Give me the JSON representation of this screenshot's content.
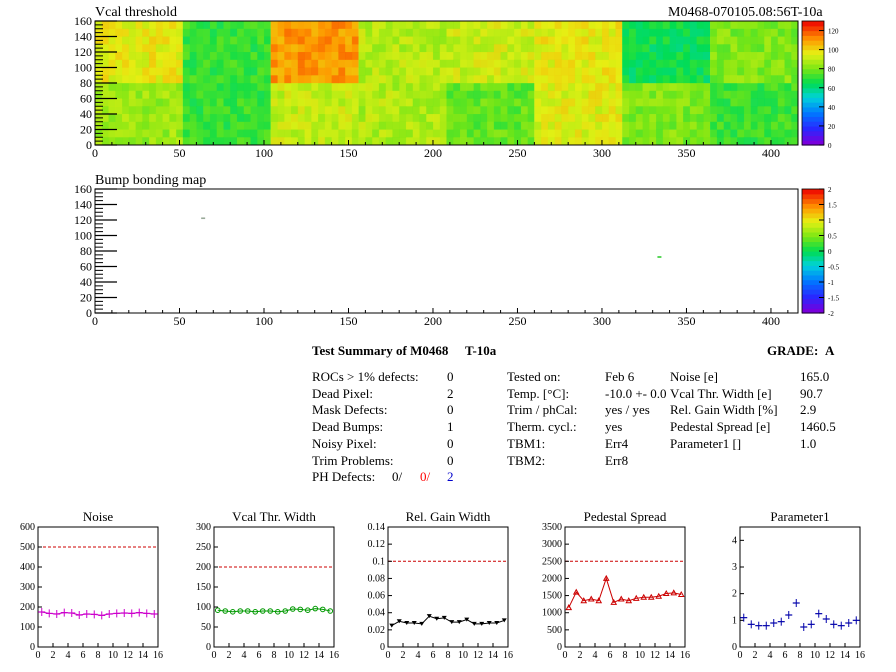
{
  "header": {
    "module_id": "M0468-070105.08:56T-10a"
  },
  "summary": {
    "title": "Test Summary of M0468",
    "temp_code": "T-10a",
    "grade_label": "GRADE:",
    "grade_value": "A",
    "left": [
      {
        "label": "ROCs > 1% defects:",
        "value": "0"
      },
      {
        "label": "Dead Pixel:",
        "value": "2"
      },
      {
        "label": "Mask Defects:",
        "value": "0"
      },
      {
        "label": "Dead Bumps:",
        "value": "1"
      },
      {
        "label": "Noisy Pixel:",
        "value": "0"
      },
      {
        "label": "Trim Problems:",
        "value": "0"
      }
    ],
    "ph_defects": {
      "label": "PH Defects:",
      "v1": "0/",
      "v2": "0/",
      "v3": "2",
      "c2": "#ff0000",
      "c3": "#0000cc"
    },
    "middle": [
      {
        "label": "Tested on:",
        "value": "Feb 6"
      },
      {
        "label": "Temp. [°C]:",
        "value": "-10.0 +- 0.0"
      },
      {
        "label": "Trim / phCal:",
        "value": "yes / yes"
      },
      {
        "label": "Therm. cycl.:",
        "value": "yes"
      },
      {
        "label": "TBM1:",
        "value": "Err4"
      },
      {
        "label": "TBM2:",
        "value": "Err8"
      }
    ],
    "right": [
      {
        "label": "Noise [e]",
        "value": "165.0"
      },
      {
        "label": "Vcal Thr. Width [e]",
        "value": "90.7"
      },
      {
        "label": "Rel. Gain Width [%]",
        "value": "2.9"
      },
      {
        "label": "Pedestal Spread [e]",
        "value": "1460.5"
      },
      {
        "label": "Parameter1 []",
        "value": "1.0"
      }
    ]
  },
  "chart_data": [
    {
      "type": "heatmap",
      "title": "Vcal threshold",
      "xlim": [
        0,
        416
      ],
      "ylim": [
        0,
        160
      ],
      "xticks": [
        "0",
        "50",
        "100",
        "150",
        "200",
        "250",
        "300",
        "350",
        "400"
      ],
      "yticks": [
        "0",
        "20",
        "40",
        "60",
        "80",
        "100",
        "120",
        "140",
        "160"
      ],
      "colorbar": {
        "min": 0,
        "max": 130,
        "ticks": [
          "0",
          "20",
          "40",
          "60",
          "80",
          "100",
          "120"
        ]
      },
      "roc_values": {
        "top": [
          98,
          72,
          112,
          90,
          93,
          98,
          66,
          82
        ],
        "bottom": [
          86,
          72,
          92,
          89,
          78,
          96,
          82,
          73
        ]
      }
    },
    {
      "type": "heatmap",
      "title": "Bump bonding map",
      "xlim": [
        0,
        416
      ],
      "ylim": [
        0,
        160
      ],
      "xticks": [
        "0",
        "50",
        "100",
        "150",
        "200",
        "250",
        "300",
        "350",
        "400"
      ],
      "yticks": [
        "0",
        "20",
        "40",
        "60",
        "80",
        "100",
        "120",
        "140",
        "160"
      ],
      "colorbar": {
        "min": -2,
        "max": 2,
        "ticks": [
          "-2",
          "-1.5",
          "-1",
          "-0.5",
          "0",
          "0.5",
          "1",
          "1.5",
          "2"
        ]
      },
      "points": [
        {
          "x": 64,
          "y": 122,
          "color": "#99aa99"
        },
        {
          "x": 334,
          "y": 72,
          "color": "#33cc33"
        }
      ]
    },
    {
      "type": "line",
      "title": "Noise",
      "color": "#cc00cc",
      "marker": "cross",
      "xlim": [
        0,
        16
      ],
      "ylim": [
        0,
        600
      ],
      "ref": 500,
      "xticks": [
        "0",
        "2",
        "4",
        "6",
        "8",
        "10",
        "12",
        "14",
        "16"
      ],
      "yticks": [
        "0",
        "100",
        "200",
        "300",
        "400",
        "500",
        "600"
      ],
      "x": [
        0,
        1,
        2,
        3,
        4,
        5,
        6,
        7,
        8,
        9,
        10,
        11,
        12,
        13,
        14,
        15
      ],
      "values": [
        175,
        168,
        165,
        172,
        170,
        160,
        165,
        163,
        158,
        165,
        168,
        170,
        168,
        172,
        168,
        165
      ]
    },
    {
      "type": "line",
      "title": "Vcal Thr. Width",
      "color": "#009900",
      "marker": "circle",
      "xlim": [
        0,
        16
      ],
      "ylim": [
        0,
        300
      ],
      "ref": 200,
      "xticks": [
        "0",
        "2",
        "4",
        "6",
        "8",
        "10",
        "12",
        "14",
        "16"
      ],
      "yticks": [
        "0",
        "50",
        "100",
        "150",
        "200",
        "250",
        "300"
      ],
      "x": [
        0,
        1,
        2,
        3,
        4,
        5,
        6,
        7,
        8,
        9,
        10,
        11,
        12,
        13,
        14,
        15
      ],
      "values": [
        92,
        90,
        88,
        90,
        90,
        88,
        90,
        90,
        88,
        90,
        95,
        94,
        92,
        96,
        94,
        90
      ]
    },
    {
      "type": "line",
      "title": "Rel. Gain Width",
      "color": "#000000",
      "marker": "triangle-down",
      "xlim": [
        0,
        16
      ],
      "ylim": [
        0,
        0.14
      ],
      "ref": 0.1,
      "xticks": [
        "0",
        "2",
        "4",
        "6",
        "8",
        "10",
        "12",
        "14",
        "16"
      ],
      "yticks": [
        "0",
        "0.02",
        "0.04",
        "0.06",
        "0.08",
        "0.1",
        "0.12",
        "0.14"
      ],
      "x": [
        0,
        1,
        2,
        3,
        4,
        5,
        6,
        7,
        8,
        9,
        10,
        11,
        12,
        13,
        14,
        15
      ],
      "values": [
        0.025,
        0.03,
        0.028,
        0.028,
        0.027,
        0.036,
        0.033,
        0.034,
        0.029,
        0.029,
        0.032,
        0.027,
        0.027,
        0.028,
        0.028,
        0.031
      ]
    },
    {
      "type": "line",
      "title": "Pedestal Spread",
      "color": "#cc0000",
      "marker": "triangle-up",
      "xlim": [
        0,
        16
      ],
      "ylim": [
        0,
        3500
      ],
      "ref": 2500,
      "xticks": [
        "0",
        "2",
        "4",
        "6",
        "8",
        "10",
        "12",
        "14",
        "16"
      ],
      "yticks": [
        "0",
        "500",
        "1000",
        "1500",
        "2000",
        "2500",
        "3000",
        "3500"
      ],
      "x": [
        0,
        1,
        2,
        3,
        4,
        5,
        6,
        7,
        8,
        9,
        10,
        11,
        12,
        13,
        14,
        15
      ],
      "values": [
        1150,
        1600,
        1350,
        1400,
        1350,
        2000,
        1300,
        1400,
        1350,
        1420,
        1450,
        1450,
        1480,
        1560,
        1580,
        1530
      ]
    },
    {
      "type": "scatter",
      "title": "Parameter1",
      "color": "#0000aa",
      "marker": "cross",
      "xlim": [
        0,
        16
      ],
      "ylim": [
        0,
        4.5
      ],
      "xticks": [
        "0",
        "2",
        "4",
        "6",
        "8",
        "10",
        "12",
        "14",
        "16"
      ],
      "yticks": [
        "0",
        "1",
        "2",
        "3",
        "4"
      ],
      "x": [
        0,
        1,
        2,
        3,
        4,
        5,
        6,
        7,
        8,
        9,
        10,
        11,
        12,
        13,
        14,
        15
      ],
      "values": [
        1.1,
        0.85,
        0.8,
        0.8,
        0.9,
        0.95,
        1.2,
        1.65,
        0.75,
        0.85,
        1.25,
        1.05,
        0.85,
        0.8,
        0.9,
        1.0
      ]
    }
  ]
}
